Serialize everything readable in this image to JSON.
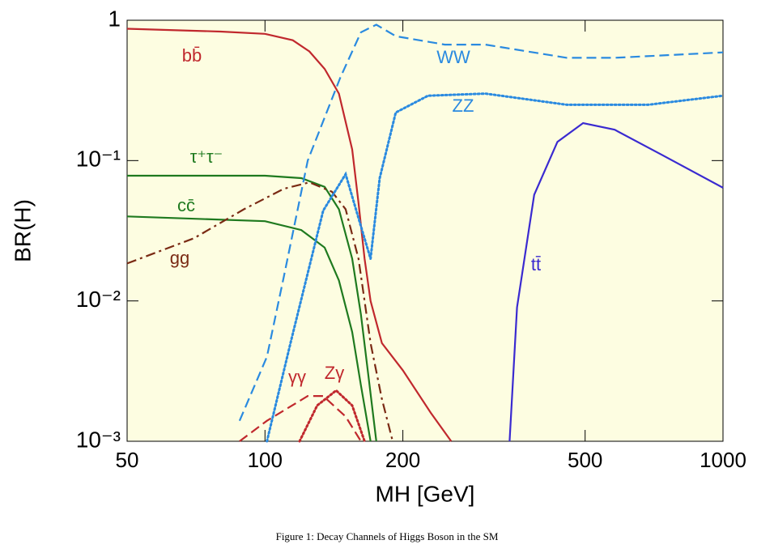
{
  "chart_data": {
    "type": "line",
    "ylabel": "BR(H)",
    "xlabel": "MH [GeV]",
    "caption": "Figure 1: Decay Channels of Higgs Boson in the SM",
    "xscale": "log",
    "yscale": "log",
    "background": "#fdfde1",
    "xlim": [
      50,
      1000
    ],
    "xticks": [
      50,
      100,
      200,
      500,
      1000
    ],
    "ylim": [
      0.001,
      1
    ],
    "yticks": [
      {
        "value": 0.001,
        "label": "10⁻³"
      },
      {
        "value": 0.01,
        "label": "10⁻²"
      },
      {
        "value": 0.1,
        "label": "10⁻¹"
      },
      1
    ],
    "series": [
      {
        "name": "bb̄",
        "color": "#c0282d",
        "style": "solid",
        "x": [
          50,
          80,
          100,
          115,
          125,
          135,
          145,
          155,
          160,
          165,
          170,
          180,
          200,
          230,
          255
        ],
        "values": [
          0.87,
          0.83,
          0.8,
          0.72,
          0.6,
          0.45,
          0.3,
          0.12,
          0.05,
          0.02,
          0.01,
          0.005,
          0.0032,
          0.0016,
          0.001
        ]
      },
      {
        "name": "τ⁺τ⁻",
        "color": "#1f7a1f",
        "style": "solid",
        "x": [
          50,
          100,
          120,
          135,
          145,
          155,
          162,
          168,
          175
        ],
        "values": [
          0.078,
          0.078,
          0.075,
          0.065,
          0.045,
          0.02,
          0.008,
          0.003,
          0.001
        ]
      },
      {
        "name": "cc̄",
        "color": "#1f7a1f",
        "style": "solid",
        "x": [
          50,
          100,
          120,
          135,
          145,
          155,
          162,
          170
        ],
        "values": [
          0.04,
          0.037,
          0.032,
          0.024,
          0.014,
          0.006,
          0.0025,
          0.001
        ]
      },
      {
        "name": "gg",
        "color": "#7a2a14",
        "style": "dashdot",
        "x": [
          50,
          70,
          90,
          110,
          125,
          140,
          150,
          160,
          165,
          170,
          180,
          190
        ],
        "values": [
          0.0185,
          0.028,
          0.045,
          0.063,
          0.07,
          0.06,
          0.045,
          0.02,
          0.01,
          0.005,
          0.002,
          0.001
        ]
      },
      {
        "name": "WW",
        "color": "#2a8ae0",
        "style": "dashed",
        "x": [
          88,
          101,
          110,
          124,
          146,
          162,
          175,
          193,
          247,
          303,
          456,
          580,
          1000
        ],
        "values": [
          0.0014,
          0.004,
          0.015,
          0.1,
          0.39,
          0.82,
          0.93,
          0.77,
          0.67,
          0.67,
          0.54,
          0.54,
          0.59
        ]
      },
      {
        "name": "ZZ",
        "color": "#2a8ae0",
        "style": "dotted",
        "x": [
          101,
          114,
          134,
          150,
          162,
          170,
          178,
          193,
          227,
          303,
          456,
          686,
          1000
        ],
        "values": [
          0.001,
          0.0052,
          0.044,
          0.08,
          0.034,
          0.02,
          0.075,
          0.22,
          0.29,
          0.3,
          0.25,
          0.25,
          0.29
        ]
      },
      {
        "name": "tt̄",
        "color": "#3a2ad0",
        "style": "solid",
        "x": [
          342,
          355,
          387,
          435,
          495,
          580,
          735,
          1000
        ],
        "values": [
          0.001,
          0.009,
          0.057,
          0.136,
          0.185,
          0.166,
          0.11,
          0.064
        ]
      },
      {
        "name": "γγ",
        "color": "#c0282d",
        "style": "dashed",
        "x": [
          88,
          101,
          124,
          134,
          150,
          162
        ],
        "values": [
          0.001,
          0.0014,
          0.0021,
          0.0021,
          0.0015,
          0.001
        ]
      },
      {
        "name": "Zγ",
        "color": "#c0282d",
        "style": "dotted",
        "x": [
          119,
          130,
          143,
          155,
          165
        ],
        "values": [
          0.001,
          0.0018,
          0.0023,
          0.0018,
          0.001
        ]
      }
    ]
  }
}
